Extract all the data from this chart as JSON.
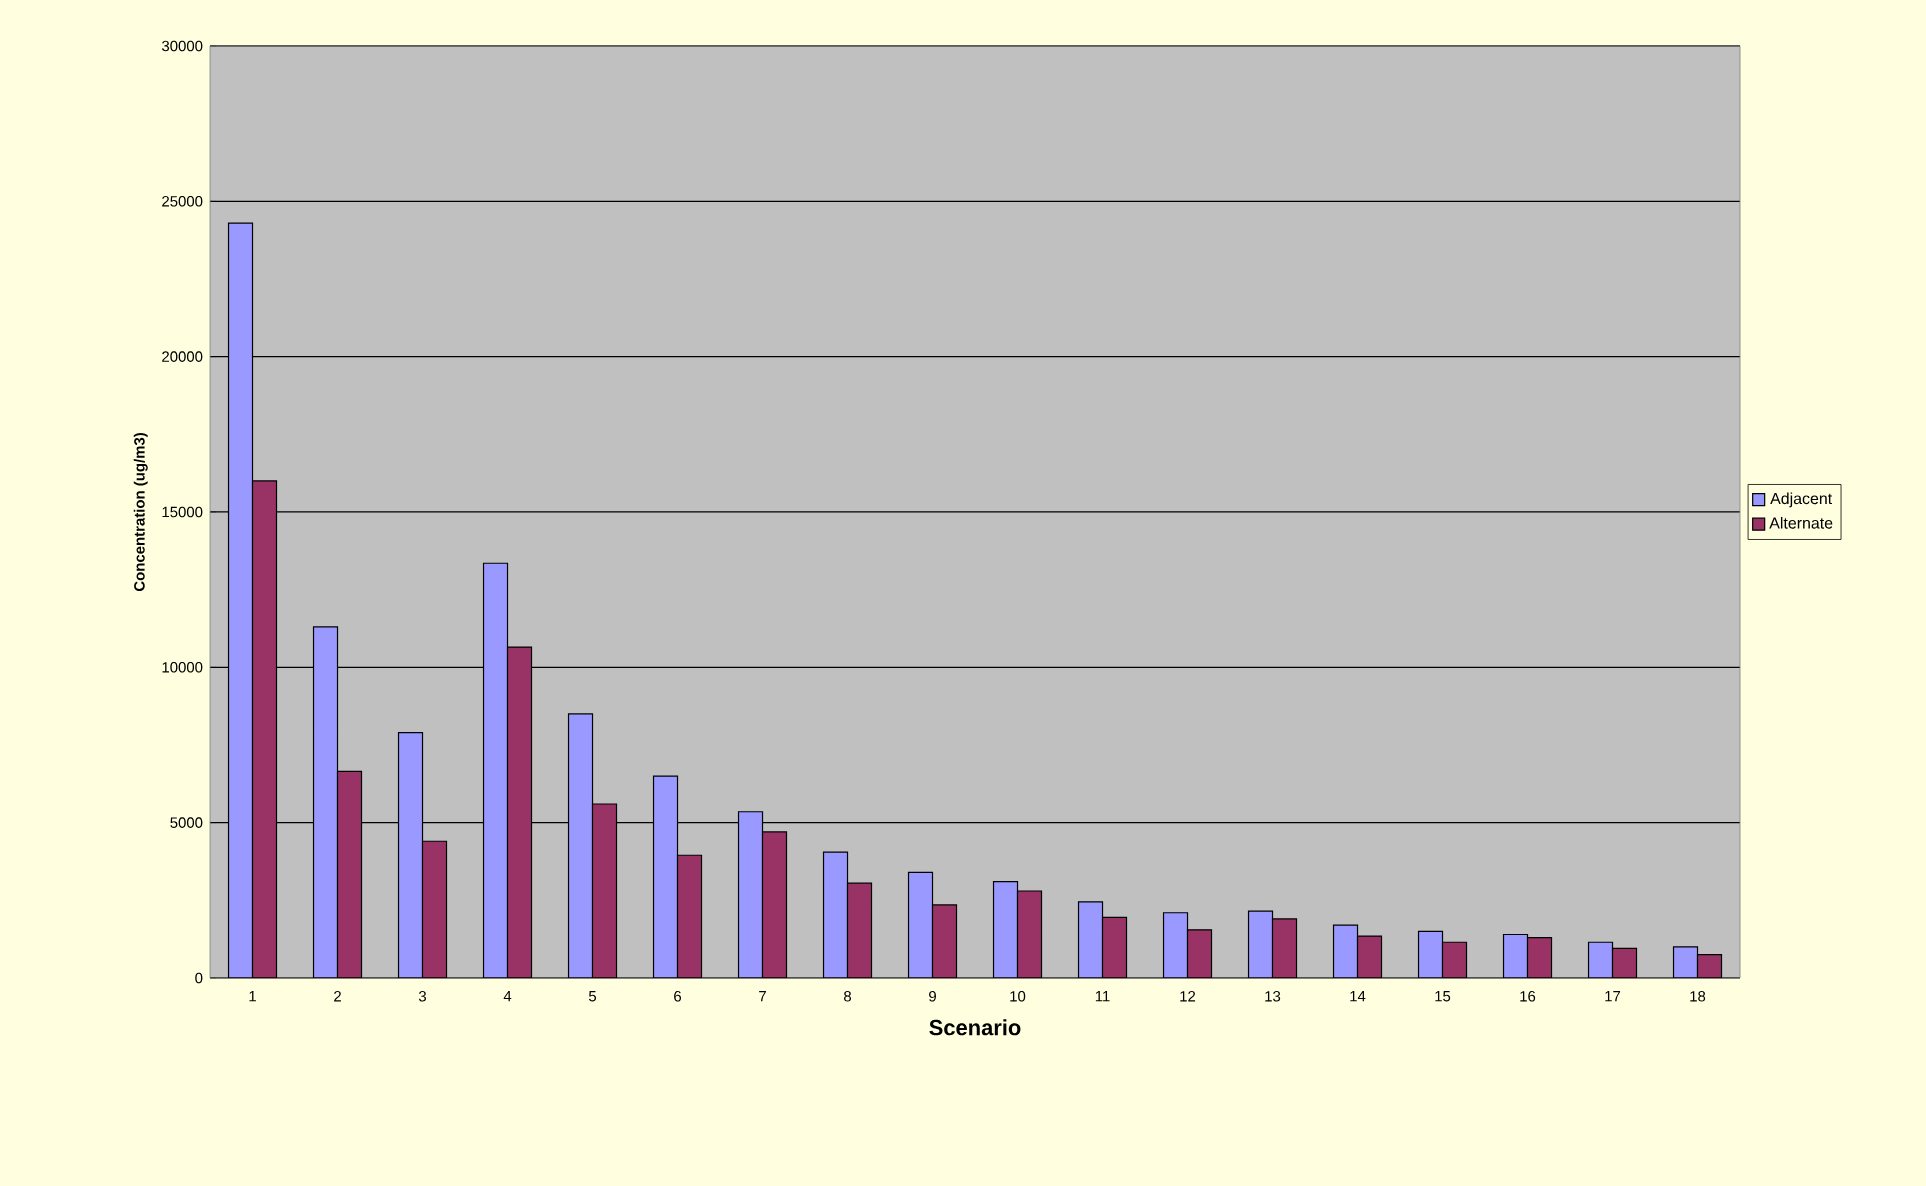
{
  "chart_data": {
    "type": "bar",
    "xlabel": "Scenario",
    "ylabel": "Concentration (ug/m3)",
    "categories": [
      "1",
      "2",
      "3",
      "4",
      "5",
      "6",
      "7",
      "8",
      "9",
      "10",
      "11",
      "12",
      "13",
      "14",
      "15",
      "16",
      "17",
      "18"
    ],
    "series": [
      {
        "name": "Adjacent",
        "color": "#9999ff",
        "values": [
          24300,
          11300,
          7900,
          13350,
          8500,
          6500,
          5350,
          4050,
          3400,
          3100,
          2450,
          2100,
          2150,
          1700,
          1500,
          1400,
          1150,
          1000
        ]
      },
      {
        "name": "Alternate",
        "color": "#993366",
        "values": [
          16000,
          6650,
          4400,
          10650,
          5600,
          3950,
          4700,
          3050,
          2350,
          2800,
          1950,
          1550,
          1900,
          1350,
          1150,
          1300,
          950,
          750
        ]
      }
    ],
    "ylim": [
      0,
      30000
    ],
    "yticks": [
      0,
      5000,
      10000,
      15000,
      20000,
      25000,
      30000
    ],
    "grid": "y",
    "legend": "right"
  }
}
